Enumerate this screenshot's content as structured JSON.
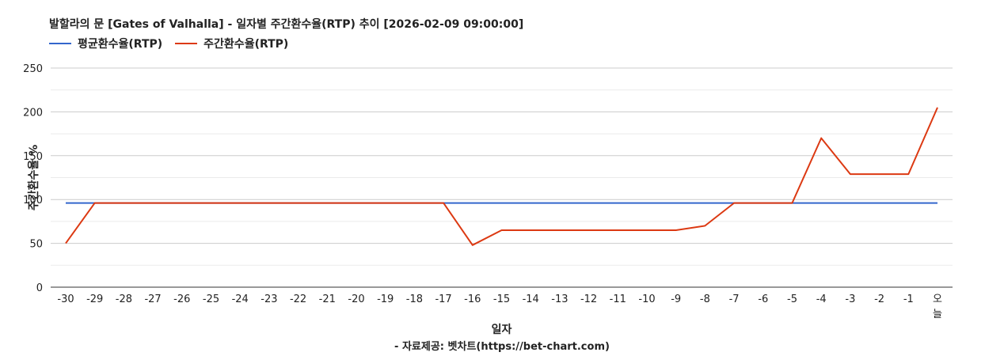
{
  "chart_data": {
    "type": "line",
    "title": "발할라의 문 [Gates of Valhalla] - 일자별 주간환수율(RTP) 추이 [2026-02-09 09:00:00]",
    "xlabel": "일자",
    "ylabel": "주간환수율 %",
    "ylim": [
      0,
      250
    ],
    "yticks": [
      "0",
      "50",
      "100",
      "150",
      "200",
      "250"
    ],
    "grid": true,
    "legend_position": "top-left",
    "categories": [
      "-30",
      "-29",
      "-28",
      "-27",
      "-26",
      "-25",
      "-24",
      "-23",
      "-22",
      "-21",
      "-20",
      "-19",
      "-18",
      "-17",
      "-16",
      "-15",
      "-14",
      "-13",
      "-12",
      "-11",
      "-10",
      "-9",
      "-8",
      "-7",
      "-6",
      "-5",
      "-4",
      "-3",
      "-2",
      "-1",
      "오늘"
    ],
    "series": [
      {
        "name": "평균환수율(RTP)",
        "color": "#3366cc",
        "values": [
          96,
          96,
          96,
          96,
          96,
          96,
          96,
          96,
          96,
          96,
          96,
          96,
          96,
          96,
          96,
          96,
          96,
          96,
          96,
          96,
          96,
          96,
          96,
          96,
          96,
          96,
          96,
          96,
          96,
          96,
          96
        ]
      },
      {
        "name": "주간환수율(RTP)",
        "color": "#dc3912",
        "values": [
          50,
          96,
          96,
          96,
          96,
          96,
          96,
          96,
          96,
          96,
          96,
          96,
          96,
          96,
          48,
          65,
          65,
          65,
          65,
          65,
          65,
          65,
          70,
          96,
          96,
          96,
          170,
          129,
          129,
          129,
          205
        ]
      }
    ]
  },
  "footer": {
    "source": "- 자료제공: 벳차트(https://bet-chart.com)"
  }
}
